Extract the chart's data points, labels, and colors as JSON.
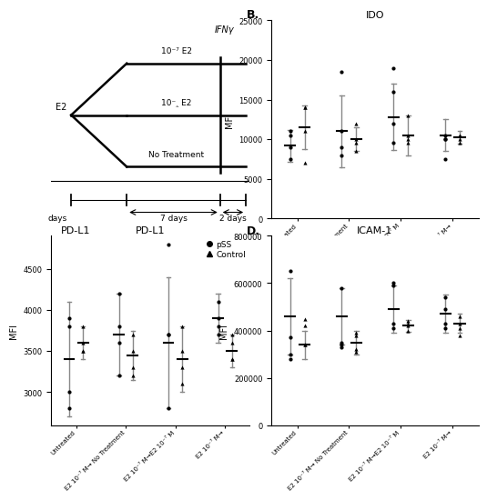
{
  "panel_B_title": "IDO",
  "panel_C_title": "PD-L1",
  "panel_D_title": "ICAM-1",
  "ylabel": "MFI",
  "legend_pss": "pSS",
  "legend_control": "Control",
  "IDO": {
    "pss_points": [
      [
        9000,
        10500,
        11000,
        7500
      ],
      [
        11000,
        18500,
        9000,
        8000
      ],
      [
        12000,
        19000,
        9500,
        16000
      ],
      [
        10500,
        10000,
        7500,
        10000
      ]
    ],
    "ctrl_points": [
      [
        14000,
        11000,
        14000,
        7000
      ],
      [
        12000,
        10000,
        8500,
        9500
      ],
      [
        13000,
        9500,
        10500,
        10000
      ],
      [
        10000,
        10500,
        9500,
        10500
      ]
    ],
    "pss_mean": [
      9200,
      11000,
      12800,
      10500
    ],
    "ctrl_mean": [
      11500,
      10000,
      10500,
      10200
    ],
    "pss_err": [
      2000,
      4500,
      4200,
      2000
    ],
    "ctrl_err": [
      2800,
      1500,
      2500,
      800
    ],
    "ylim": [
      0,
      25000
    ],
    "yticks": [
      0,
      5000,
      10000,
      15000,
      20000,
      25000
    ]
  },
  "PDL1": {
    "pss_points": [
      [
        3000,
        3800,
        3900,
        2800
      ],
      [
        4200,
        3800,
        3600,
        3200
      ],
      [
        4800,
        3700,
        3700,
        2800
      ],
      [
        4100,
        3900,
        3800,
        3700
      ]
    ],
    "ctrl_points": [
      [
        3800,
        3600,
        3500,
        3500
      ],
      [
        3700,
        3500,
        3300,
        3200
      ],
      [
        3800,
        3500,
        3300,
        3100
      ],
      [
        3700,
        3600,
        3400,
        3400
      ]
    ],
    "pss_mean": [
      3400,
      3700,
      3600,
      3900
    ],
    "ctrl_mean": [
      3600,
      3450,
      3400,
      3500
    ],
    "pss_err": [
      700,
      500,
      800,
      300
    ],
    "ctrl_err": [
      200,
      300,
      400,
      200
    ]
  },
  "ICAM1": {
    "pss_points": [
      [
        650000,
        300000,
        370000,
        280000
      ],
      [
        580000,
        330000,
        350000,
        340000
      ],
      [
        600000,
        410000,
        590000,
        430000
      ],
      [
        540000,
        430000,
        490000,
        410000
      ]
    ],
    "ctrl_points": [
      [
        420000,
        340000,
        450000,
        340000
      ],
      [
        390000,
        320000,
        380000,
        310000
      ],
      [
        430000,
        420000,
        440000,
        400000
      ],
      [
        430000,
        380000,
        460000,
        410000
      ]
    ],
    "pss_mean": [
      460000,
      460000,
      490000,
      470000
    ],
    "ctrl_mean": [
      340000,
      350000,
      420000,
      430000
    ],
    "pss_err": [
      160000,
      120000,
      100000,
      80000
    ],
    "ctrl_err": [
      60000,
      50000,
      25000,
      40000
    ],
    "ylim": [
      0,
      800000
    ],
    "yticks": [
      0,
      200000,
      400000,
      600000,
      800000
    ]
  },
  "x_labels": [
    "Untreated",
    "E2 10⁻⁷ M→ No Treatment",
    "E2 10⁻⁷ M→E2 10⁻⁷ M",
    "E2 10⁻⁷ M→"
  ],
  "diagram": {
    "ifny_label": "IFNγ",
    "e2_high_label": "10⁻⁷ E2",
    "e2_low_label": "10⁻‸ E2",
    "no_treat_label": "No Treatment",
    "e2_left_label": "E2",
    "days_label_left": "days",
    "days_label_7": "7 days",
    "days_label_2": "2 days"
  }
}
